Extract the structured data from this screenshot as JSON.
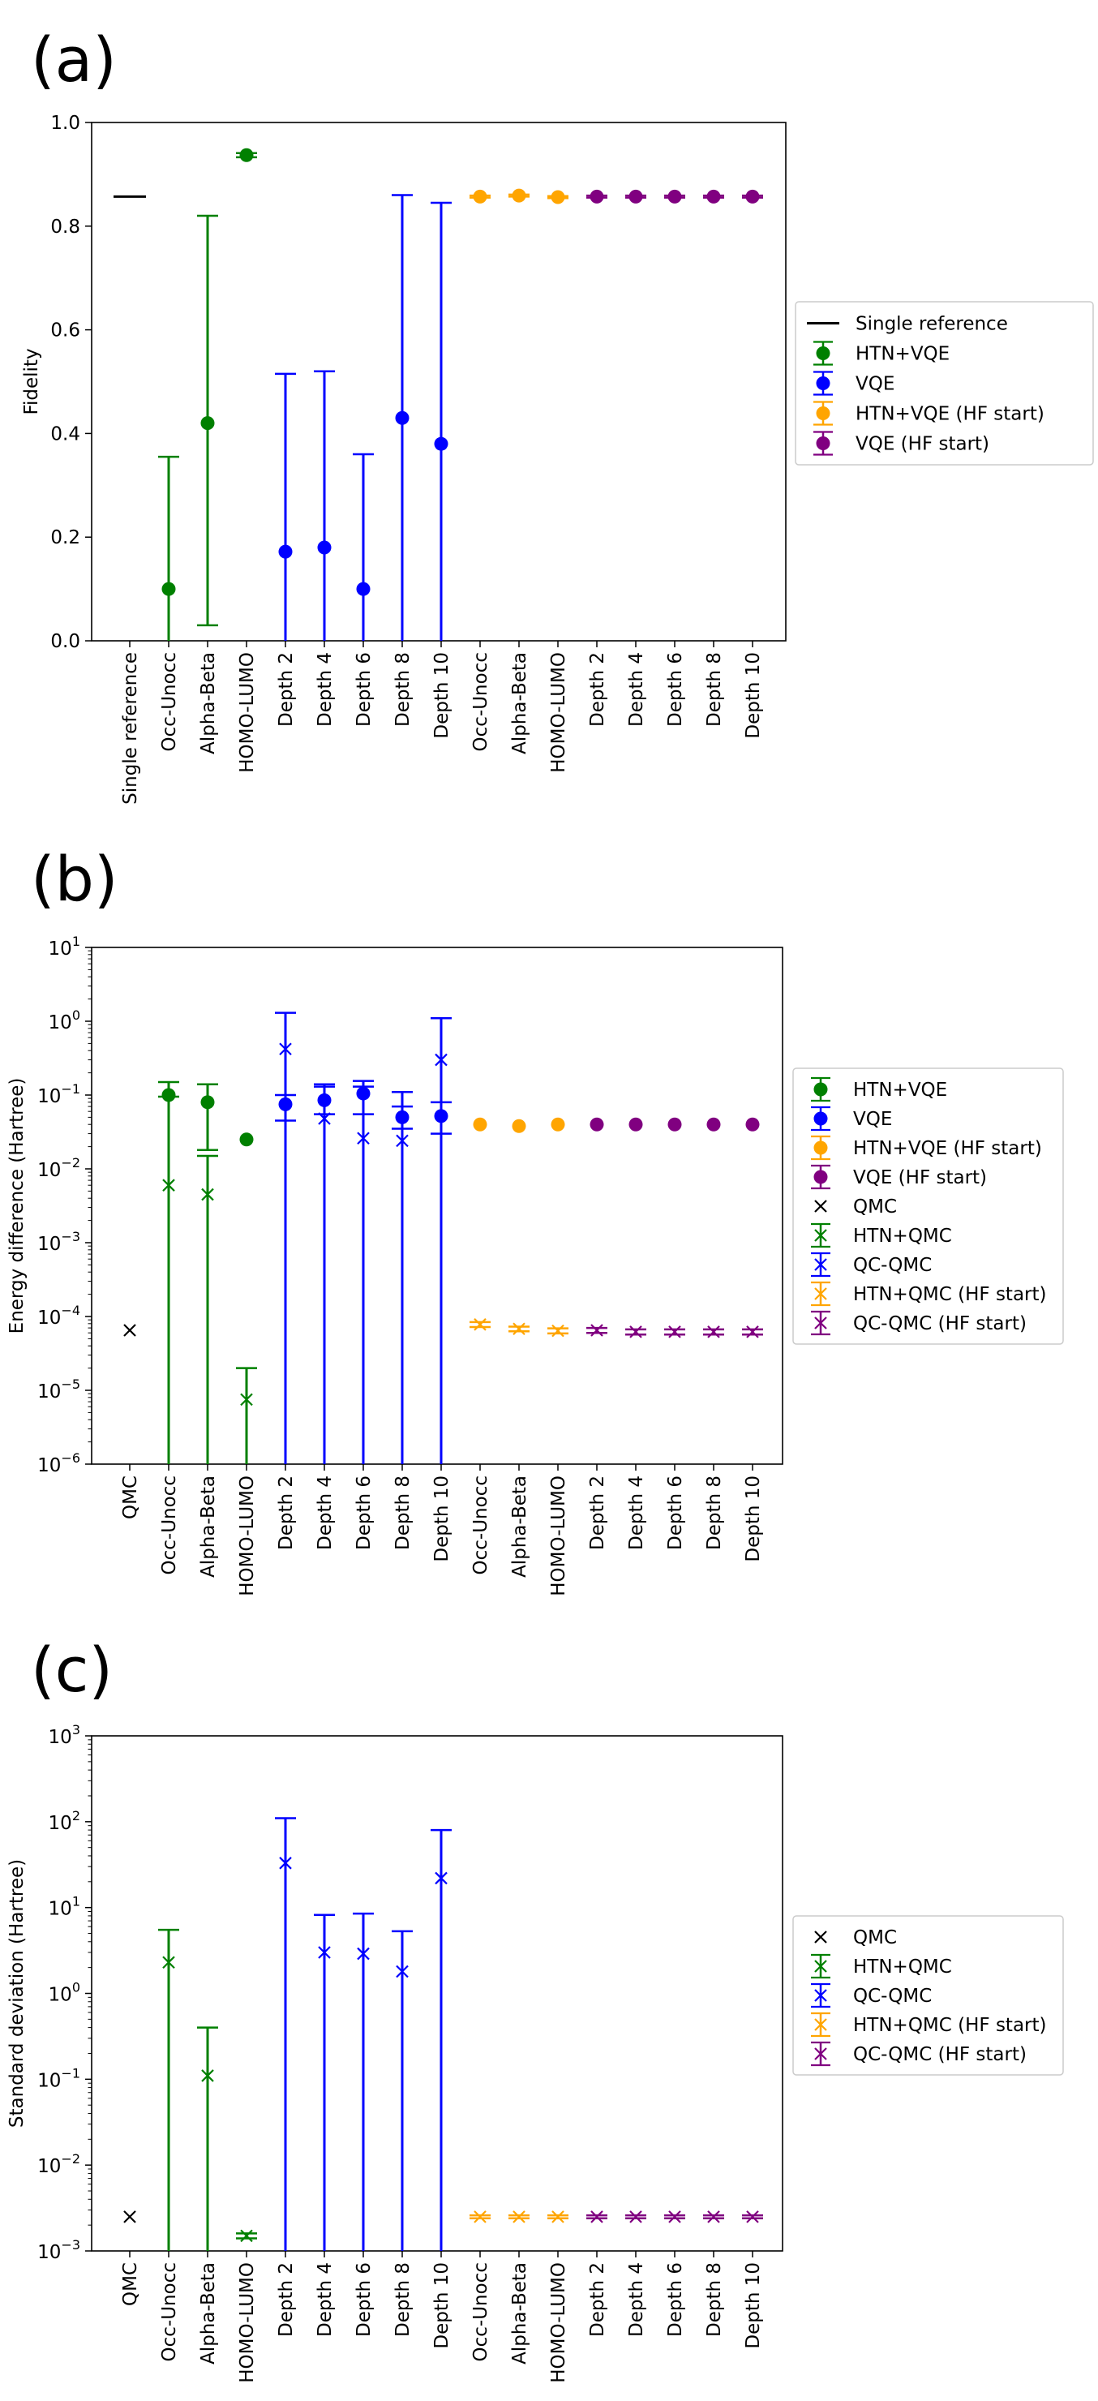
{
  "chart_data": [
    {
      "panel": "(a)",
      "type": "scatter",
      "yscale": "linear",
      "ylabel": "Fidelity",
      "ylim": [
        0,
        1.0
      ],
      "yticks": [
        "0.0",
        "0.2",
        "0.4",
        "0.6",
        "0.8",
        "1.0"
      ],
      "categories": [
        "Single reference",
        "Occ-Unocc",
        "Alpha-Beta",
        "HOMO-LUMO",
        "Depth 2",
        "Depth 4",
        "Depth 6",
        "Depth 8",
        "Depth 10",
        "Occ-Unocc",
        "Alpha-Beta",
        "HOMO-LUMO",
        "Depth 2",
        "Depth 4",
        "Depth 6",
        "Depth 8",
        "Depth 10"
      ],
      "legend": [
        {
          "label": "Single reference",
          "style": "line",
          "color": "#000000"
        },
        {
          "label": "HTN+VQE",
          "style": "dot-err",
          "color": "#008000"
        },
        {
          "label": "VQE",
          "style": "dot-err",
          "color": "#0000ff"
        },
        {
          "label": "HTN+VQE (HF start)",
          "style": "dot-err",
          "color": "#ffa500"
        },
        {
          "label": "VQE (HF start)",
          "style": "dot-err",
          "color": "#800080"
        }
      ],
      "series": [
        {
          "name": "Single reference",
          "marker": "line",
          "color": "#000000",
          "points": [
            {
              "x": 0,
              "y": 0.857
            }
          ]
        },
        {
          "name": "HTN+VQE",
          "marker": "dot",
          "color": "#008000",
          "points": [
            {
              "x": 1,
              "y": 0.1,
              "lo": 0.0,
              "hi": 0.355
            },
            {
              "x": 2,
              "y": 0.42,
              "lo": 0.03,
              "hi": 0.82
            },
            {
              "x": 3,
              "y": 0.937,
              "lo": 0.933,
              "hi": 0.941
            }
          ]
        },
        {
          "name": "VQE",
          "marker": "dot",
          "color": "#0000ff",
          "points": [
            {
              "x": 4,
              "y": 0.172,
              "lo": 0.0,
              "hi": 0.515
            },
            {
              "x": 5,
              "y": 0.18,
              "lo": 0.0,
              "hi": 0.52
            },
            {
              "x": 6,
              "y": 0.1,
              "lo": 0.0,
              "hi": 0.36
            },
            {
              "x": 7,
              "y": 0.43,
              "lo": 0.0,
              "hi": 0.86
            },
            {
              "x": 8,
              "y": 0.38,
              "lo": 0.0,
              "hi": 0.845
            }
          ]
        },
        {
          "name": "HTN+VQE (HF start)",
          "marker": "dot",
          "color": "#ffa500",
          "points": [
            {
              "x": 9,
              "y": 0.857,
              "lo": 0.855,
              "hi": 0.859
            },
            {
              "x": 10,
              "y": 0.859,
              "lo": 0.857,
              "hi": 0.861
            },
            {
              "x": 11,
              "y": 0.856,
              "lo": 0.854,
              "hi": 0.858
            }
          ]
        },
        {
          "name": "VQE (HF start)",
          "marker": "dot",
          "color": "#800080",
          "points": [
            {
              "x": 12,
              "y": 0.857,
              "lo": 0.855,
              "hi": 0.859
            },
            {
              "x": 13,
              "y": 0.857,
              "lo": 0.855,
              "hi": 0.859
            },
            {
              "x": 14,
              "y": 0.857,
              "lo": 0.855,
              "hi": 0.859
            },
            {
              "x": 15,
              "y": 0.857,
              "lo": 0.855,
              "hi": 0.859
            },
            {
              "x": 16,
              "y": 0.857,
              "lo": 0.855,
              "hi": 0.859
            }
          ]
        }
      ]
    },
    {
      "panel": "(b)",
      "type": "scatter",
      "yscale": "log",
      "ylabel": "Energy difference (Hartree)",
      "ylim": [
        -6,
        1
      ],
      "yticks": [
        {
          "base": "10",
          "exp": "−6"
        },
        {
          "base": "10",
          "exp": "−5"
        },
        {
          "base": "10",
          "exp": "−4"
        },
        {
          "base": "10",
          "exp": "−3"
        },
        {
          "base": "10",
          "exp": "−2"
        },
        {
          "base": "10",
          "exp": "−1"
        },
        {
          "base": "10",
          "exp": "0"
        },
        {
          "base": "10",
          "exp": "1"
        }
      ],
      "categories": [
        "QMC",
        "Occ-Unocc",
        "Alpha-Beta",
        "HOMO-LUMO",
        "Depth 2",
        "Depth 4",
        "Depth 6",
        "Depth 8",
        "Depth 10",
        "Occ-Unocc",
        "Alpha-Beta",
        "HOMO-LUMO",
        "Depth 2",
        "Depth 4",
        "Depth 6",
        "Depth 8",
        "Depth 10"
      ],
      "legend": [
        {
          "label": "HTN+VQE",
          "style": "dot-err",
          "color": "#008000"
        },
        {
          "label": "VQE",
          "style": "dot-err",
          "color": "#0000ff"
        },
        {
          "label": "HTN+VQE (HF start)",
          "style": "dot-err",
          "color": "#ffa500"
        },
        {
          "label": "VQE (HF start)",
          "style": "dot-err",
          "color": "#800080"
        },
        {
          "label": "QMC",
          "style": "x",
          "color": "#000000"
        },
        {
          "label": "HTN+QMC",
          "style": "x-err",
          "color": "#008000"
        },
        {
          "label": "QC-QMC",
          "style": "x-err",
          "color": "#0000ff"
        },
        {
          "label": "HTN+QMC (HF start)",
          "style": "x-err",
          "color": "#ffa500"
        },
        {
          "label": "QC-QMC (HF start)",
          "style": "x-err",
          "color": "#800080"
        }
      ],
      "series": [
        {
          "name": "HTN+VQE",
          "marker": "dot",
          "color": "#008000",
          "points": [
            {
              "x": 1,
              "y": 0.1,
              "lo": 1e-07,
              "hi": 0.15
            },
            {
              "x": 2,
              "y": 0.08,
              "lo": 0.018,
              "hi": 0.14
            },
            {
              "x": 3,
              "y": 0.025
            }
          ]
        },
        {
          "name": "VQE",
          "marker": "dot",
          "color": "#0000ff",
          "points": [
            {
              "x": 4,
              "y": 0.075,
              "lo": 0.045,
              "hi": 0.1
            },
            {
              "x": 5,
              "y": 0.085,
              "lo": 0.055,
              "hi": 0.13
            },
            {
              "x": 6,
              "y": 0.105,
              "lo": 0.055,
              "hi": 0.155
            },
            {
              "x": 7,
              "y": 0.05,
              "lo": 0.035,
              "hi": 0.07
            },
            {
              "x": 8,
              "y": 0.052,
              "lo": 0.03,
              "hi": 0.08
            }
          ]
        },
        {
          "name": "HTN+VQE (HF start)",
          "marker": "dot",
          "color": "#ffa500",
          "points": [
            {
              "x": 9,
              "y": 0.04
            },
            {
              "x": 10,
              "y": 0.038
            },
            {
              "x": 11,
              "y": 0.04
            }
          ]
        },
        {
          "name": "VQE (HF start)",
          "marker": "dot",
          "color": "#800080",
          "points": [
            {
              "x": 12,
              "y": 0.04
            },
            {
              "x": 13,
              "y": 0.04
            },
            {
              "x": 14,
              "y": 0.04
            },
            {
              "x": 15,
              "y": 0.04
            },
            {
              "x": 16,
              "y": 0.04
            }
          ]
        },
        {
          "name": "QMC",
          "marker": "x",
          "color": "#000000",
          "points": [
            {
              "x": 0,
              "y": 6.5e-05
            }
          ]
        },
        {
          "name": "HTN+QMC",
          "marker": "x",
          "color": "#008000",
          "points": [
            {
              "x": 1,
              "y": 0.006,
              "lo": 1e-07,
              "hi": 0.095
            },
            {
              "x": 2,
              "y": 0.0045,
              "lo": 1e-07,
              "hi": 0.015
            },
            {
              "x": 3,
              "y": 7.5e-06,
              "lo": 1e-07,
              "hi": 2e-05
            }
          ]
        },
        {
          "name": "QC-QMC",
          "marker": "x",
          "color": "#0000ff",
          "points": [
            {
              "x": 4,
              "y": 0.42,
              "lo": 1e-07,
              "hi": 1.3
            },
            {
              "x": 5,
              "y": 0.048,
              "lo": 1e-07,
              "hi": 0.14
            },
            {
              "x": 6,
              "y": 0.026,
              "lo": 1e-07,
              "hi": 0.13
            },
            {
              "x": 7,
              "y": 0.024,
              "lo": 1e-07,
              "hi": 0.11
            },
            {
              "x": 8,
              "y": 0.3,
              "lo": 1e-07,
              "hi": 1.1
            }
          ]
        },
        {
          "name": "HTN+QMC (HF start)",
          "marker": "x",
          "color": "#ffa500",
          "points": [
            {
              "x": 9,
              "y": 7.8e-05,
              "lo": 7.2e-05,
              "hi": 8.4e-05
            },
            {
              "x": 10,
              "y": 6.8e-05,
              "lo": 6.3e-05,
              "hi": 7.3e-05
            },
            {
              "x": 11,
              "y": 6.4e-05,
              "lo": 5.9e-05,
              "hi": 6.9e-05
            }
          ]
        },
        {
          "name": "QC-QMC (HF start)",
          "marker": "x",
          "color": "#800080",
          "points": [
            {
              "x": 12,
              "y": 6.5e-05,
              "lo": 6e-05,
              "hi": 7e-05
            },
            {
              "x": 13,
              "y": 6.2e-05,
              "lo": 5.7e-05,
              "hi": 6.7e-05
            },
            {
              "x": 14,
              "y": 6.2e-05,
              "lo": 5.7e-05,
              "hi": 6.7e-05
            },
            {
              "x": 15,
              "y": 6.2e-05,
              "lo": 5.7e-05,
              "hi": 6.7e-05
            },
            {
              "x": 16,
              "y": 6.2e-05,
              "lo": 5.7e-05,
              "hi": 6.7e-05
            }
          ]
        }
      ]
    },
    {
      "panel": "(c)",
      "type": "scatter",
      "yscale": "log",
      "ylabel": "Standard deviation (Hartree)",
      "ylim": [
        -3,
        3
      ],
      "yticks": [
        {
          "base": "10",
          "exp": "−3"
        },
        {
          "base": "10",
          "exp": "−2"
        },
        {
          "base": "10",
          "exp": "−1"
        },
        {
          "base": "10",
          "exp": "0"
        },
        {
          "base": "10",
          "exp": "1"
        },
        {
          "base": "10",
          "exp": "2"
        },
        {
          "base": "10",
          "exp": "3"
        }
      ],
      "categories": [
        "QMC",
        "Occ-Unocc",
        "Alpha-Beta",
        "HOMO-LUMO",
        "Depth 2",
        "Depth 4",
        "Depth 6",
        "Depth 8",
        "Depth 10",
        "Occ-Unocc",
        "Alpha-Beta",
        "HOMO-LUMO",
        "Depth 2",
        "Depth 4",
        "Depth 6",
        "Depth 8",
        "Depth 10"
      ],
      "legend": [
        {
          "label": "QMC",
          "style": "x",
          "color": "#000000"
        },
        {
          "label": "HTN+QMC",
          "style": "x-err",
          "color": "#008000"
        },
        {
          "label": "QC-QMC",
          "style": "x-err",
          "color": "#0000ff"
        },
        {
          "label": "HTN+QMC (HF start)",
          "style": "x-err",
          "color": "#ffa500"
        },
        {
          "label": "QC-QMC (HF start)",
          "style": "x-err",
          "color": "#800080"
        }
      ],
      "series": [
        {
          "name": "QMC",
          "marker": "x",
          "color": "#000000",
          "points": [
            {
              "x": 0,
              "y": 0.0025
            }
          ]
        },
        {
          "name": "HTN+QMC",
          "marker": "x",
          "color": "#008000",
          "points": [
            {
              "x": 1,
              "y": 2.3,
              "lo": 0.0001,
              "hi": 5.5
            },
            {
              "x": 2,
              "y": 0.11,
              "lo": 0.0001,
              "hi": 0.4
            },
            {
              "x": 3,
              "y": 0.0015,
              "lo": 0.0014,
              "hi": 0.0016
            }
          ]
        },
        {
          "name": "QC-QMC",
          "marker": "x",
          "color": "#0000ff",
          "points": [
            {
              "x": 4,
              "y": 33,
              "lo": 0.0001,
              "hi": 110
            },
            {
              "x": 5,
              "y": 3.0,
              "lo": 0.0001,
              "hi": 8.2
            },
            {
              "x": 6,
              "y": 2.9,
              "lo": 0.0001,
              "hi": 8.5
            },
            {
              "x": 7,
              "y": 1.8,
              "lo": 0.0001,
              "hi": 5.3
            },
            {
              "x": 8,
              "y": 22,
              "lo": 0.0001,
              "hi": 80
            }
          ]
        },
        {
          "name": "HTN+QMC (HF start)",
          "marker": "x",
          "color": "#ffa500",
          "points": [
            {
              "x": 9,
              "y": 0.0025,
              "lo": 0.0024,
              "hi": 0.0026
            },
            {
              "x": 10,
              "y": 0.0025,
              "lo": 0.0024,
              "hi": 0.0026
            },
            {
              "x": 11,
              "y": 0.0025,
              "lo": 0.0024,
              "hi": 0.0026
            }
          ]
        },
        {
          "name": "QC-QMC (HF start)",
          "marker": "x",
          "color": "#800080",
          "points": [
            {
              "x": 12,
              "y": 0.0025,
              "lo": 0.0024,
              "hi": 0.0026
            },
            {
              "x": 13,
              "y": 0.0025,
              "lo": 0.0024,
              "hi": 0.0026
            },
            {
              "x": 14,
              "y": 0.0025,
              "lo": 0.0024,
              "hi": 0.0026
            },
            {
              "x": 15,
              "y": 0.0025,
              "lo": 0.0024,
              "hi": 0.0026
            },
            {
              "x": 16,
              "y": 0.0025,
              "lo": 0.0024,
              "hi": 0.0026
            }
          ]
        }
      ]
    }
  ]
}
